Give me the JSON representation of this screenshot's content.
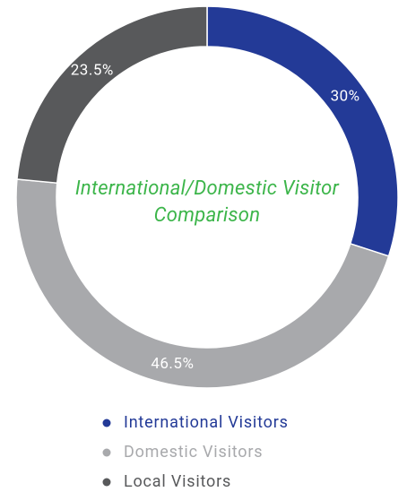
{
  "chart_data": {
    "type": "donut",
    "title": "International/Domestic Visitor Comparison",
    "categories": [
      "International Visitors",
      "Domestic Visitors",
      "Local Visitors"
    ],
    "values": [
      30,
      46.5,
      23.5
    ],
    "value_labels": [
      "30%",
      "46.5%",
      "23.5%"
    ],
    "colors": [
      "#233a97",
      "#a8a9ac",
      "#58595b"
    ]
  }
}
